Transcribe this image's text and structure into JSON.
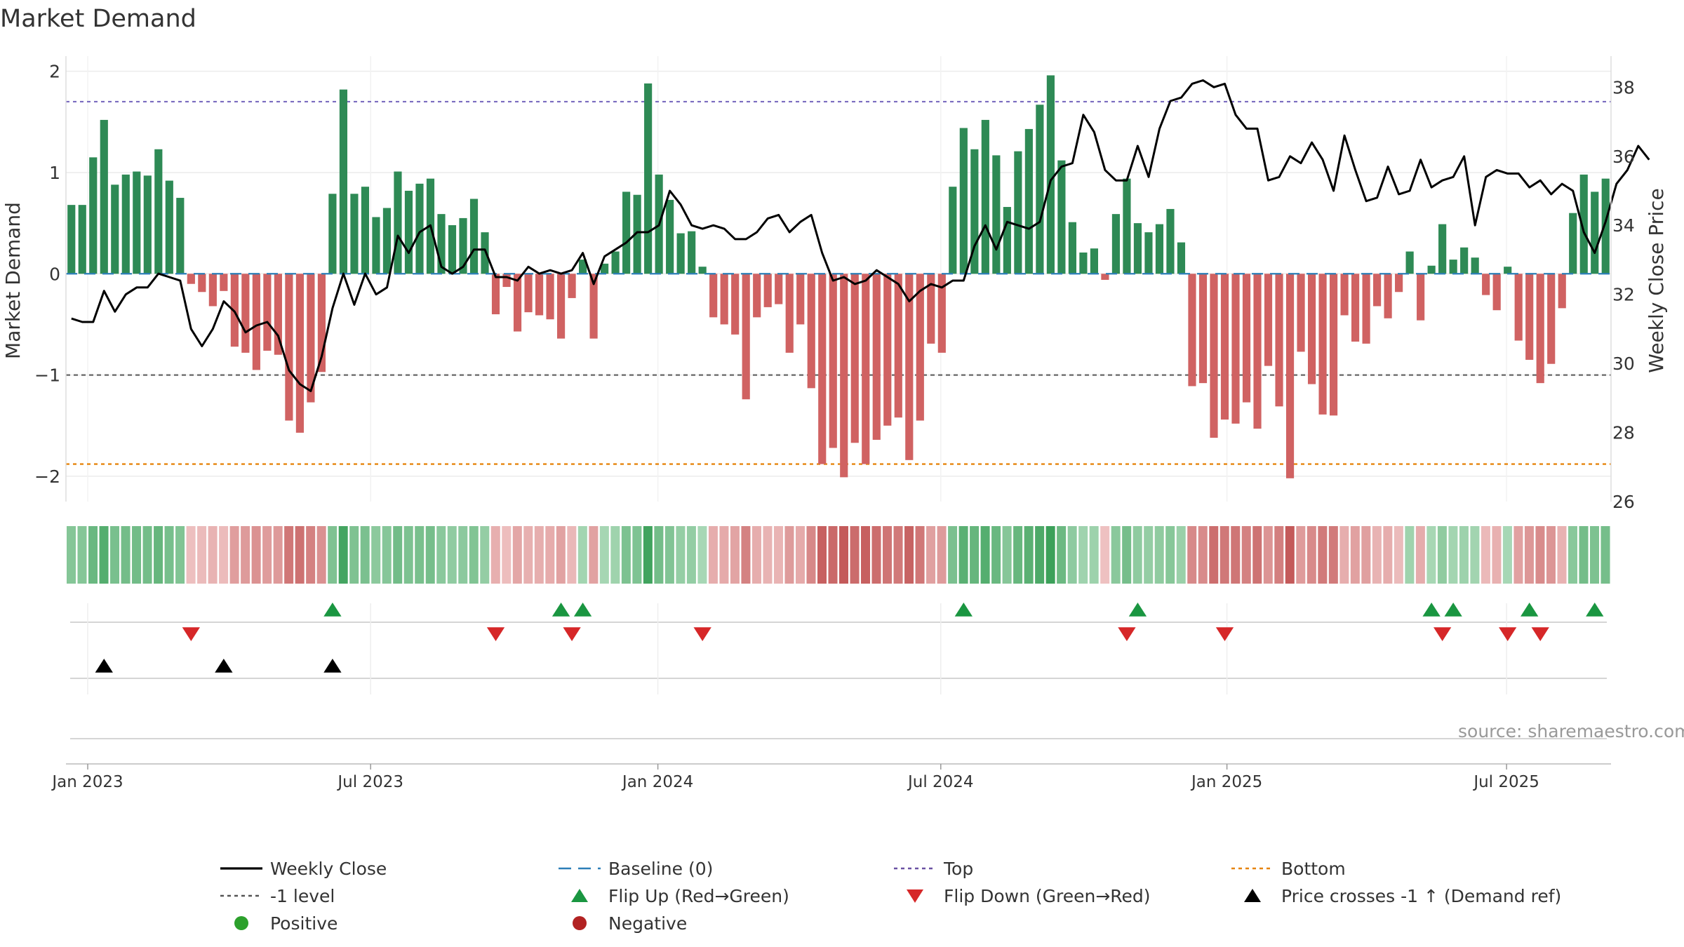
{
  "chart_data": {
    "type": "bar",
    "title": "Market Demand",
    "ylabel": "Market Demand",
    "y2label": "Weekly Close Price",
    "ylim": [
      -2.25,
      2.15
    ],
    "y2lim": [
      26,
      38.9
    ],
    "yticks": [
      {
        "v": 2,
        "t": "2"
      },
      {
        "v": 1,
        "t": "1"
      },
      {
        "v": 0,
        "t": "0"
      },
      {
        "v": -1,
        "t": "−1"
      },
      {
        "v": -2,
        "t": "−2"
      }
    ],
    "y2ticks": [
      {
        "v": 38,
        "t": "38"
      },
      {
        "v": 36,
        "t": "36"
      },
      {
        "v": 34,
        "t": "34"
      },
      {
        "v": 32,
        "t": "32"
      },
      {
        "v": 30,
        "t": "30"
      },
      {
        "v": 28,
        "t": "28"
      },
      {
        "v": 26,
        "t": "26"
      }
    ],
    "xticks": [
      {
        "w": 2,
        "t": "Jan 2023"
      },
      {
        "w": 28,
        "t": "Jul 2023"
      },
      {
        "w": 54.4,
        "t": "Jan 2024"
      },
      {
        "w": 80.4,
        "t": "Jul 2024"
      },
      {
        "w": 106.7,
        "t": "Jan 2025"
      },
      {
        "w": 132.4,
        "t": "Jul 2025"
      }
    ],
    "reference_lines": {
      "top": 1.7,
      "bottom": -1.88,
      "minus_one": -1,
      "baseline": 0
    },
    "demand": [
      0.68,
      0.68,
      1.15,
      1.52,
      0.88,
      0.98,
      1.01,
      0.97,
      1.23,
      0.92,
      0.75,
      -0.1,
      -0.18,
      -0.32,
      -0.17,
      -0.72,
      -0.78,
      -0.95,
      -0.76,
      -0.8,
      -1.45,
      -1.57,
      -1.27,
      -0.97,
      0.79,
      1.82,
      0.79,
      0.86,
      0.56,
      0.65,
      1.01,
      0.82,
      0.89,
      0.94,
      0.59,
      0.48,
      0.55,
      0.74,
      0.41,
      -0.4,
      -0.13,
      -0.57,
      -0.38,
      -0.41,
      -0.45,
      -0.64,
      -0.24,
      0.14,
      -0.64,
      0.1,
      0.22,
      0.81,
      0.78,
      1.88,
      0.98,
      0.73,
      0.4,
      0.42,
      0.07,
      -0.43,
      -0.5,
      -0.6,
      -1.24,
      -0.43,
      -0.33,
      -0.3,
      -0.78,
      -0.5,
      -1.13,
      -1.88,
      -1.72,
      -2.01,
      -1.67,
      -1.88,
      -1.64,
      -1.5,
      -1.42,
      -1.84,
      -1.45,
      -0.69,
      -0.78,
      0.86,
      1.44,
      1.23,
      1.52,
      1.17,
      0.66,
      1.21,
      1.43,
      1.67,
      1.96,
      1.12,
      0.51,
      0.21,
      0.25,
      -0.06,
      0.59,
      0.94,
      0.5,
      0.41,
      0.49,
      0.64,
      0.31,
      -1.11,
      -1.08,
      -1.62,
      -1.44,
      -1.48,
      -1.27,
      -1.53,
      -0.91,
      -1.31,
      -2.02,
      -0.77,
      -1.09,
      -1.39,
      -1.4,
      -0.41,
      -0.67,
      -0.69,
      -0.32,
      -0.44,
      -0.18,
      0.22,
      -0.46,
      0.08,
      0.49,
      0.14,
      0.26,
      0.16,
      -0.21,
      -0.36,
      0.07,
      -0.66,
      -0.85,
      -1.08,
      -0.89,
      -0.34,
      0.6,
      0.98,
      0.81,
      0.94
    ],
    "close": [
      31.3,
      31.2,
      31.2,
      32.1,
      31.5,
      32.0,
      32.2,
      32.2,
      32.6,
      32.5,
      32.4,
      31.0,
      30.5,
      31.0,
      31.8,
      31.5,
      30.9,
      31.1,
      31.2,
      30.8,
      29.8,
      29.4,
      29.2,
      30.2,
      31.6,
      32.6,
      31.7,
      32.6,
      32.0,
      32.2,
      33.7,
      33.2,
      33.8,
      34.0,
      32.8,
      32.6,
      32.8,
      33.3,
      33.3,
      32.5,
      32.5,
      32.4,
      32.8,
      32.6,
      32.7,
      32.6,
      32.7,
      33.2,
      32.3,
      33.1,
      33.3,
      33.5,
      33.8,
      33.8,
      34.0,
      35.0,
      34.6,
      34.0,
      33.9,
      34.0,
      33.9,
      33.6,
      33.6,
      33.8,
      34.2,
      34.3,
      33.8,
      34.1,
      34.3,
      33.2,
      32.4,
      32.5,
      32.3,
      32.4,
      32.7,
      32.5,
      32.3,
      31.8,
      32.1,
      32.3,
      32.2,
      32.4,
      32.4,
      33.4,
      34.0,
      33.3,
      34.1,
      34.0,
      33.9,
      34.1,
      35.3,
      35.7,
      35.8,
      37.2,
      36.7,
      35.6,
      35.3,
      35.3,
      36.3,
      35.4,
      36.8,
      37.6,
      37.7,
      38.1,
      38.2,
      38.0,
      38.1,
      37.2,
      36.8,
      36.8,
      35.3,
      35.4,
      36.0,
      35.8,
      36.4,
      35.9,
      35.0,
      36.6,
      35.6,
      34.7,
      34.8,
      35.7,
      34.9,
      35.0,
      35.9,
      35.1,
      35.3,
      35.4,
      36.0,
      34.0,
      35.4,
      35.6,
      35.5,
      35.5,
      35.1,
      35.3,
      34.9,
      35.2,
      35.0,
      33.8,
      33.2,
      34.1,
      35.2,
      35.6,
      36.3,
      35.9
    ],
    "markers": {
      "flip_up": [
        24,
        45,
        47,
        82,
        98,
        125,
        127,
        134,
        140
      ],
      "flip_down": [
        11,
        39,
        46,
        58,
        97,
        106,
        126,
        132,
        135
      ],
      "price_crosses": [
        3,
        14,
        24
      ]
    },
    "source": "source: sharemaestro.com",
    "legend": [
      {
        "label": "Weekly Close",
        "kind": "line",
        "color": "#000000"
      },
      {
        "label": "Baseline (0)",
        "kind": "dash",
        "color": "#2c7fb8"
      },
      {
        "label": "Top",
        "kind": "dot",
        "color": "#6a51a3"
      },
      {
        "label": "Bottom",
        "kind": "dot",
        "color": "#e6850e"
      },
      {
        "label": "-1 level",
        "kind": "dot",
        "color": "#555555"
      },
      {
        "label": "Flip Up (Red→Green)",
        "kind": "tri-up",
        "color": "#1a9641"
      },
      {
        "label": "Flip Down (Green→Red)",
        "kind": "tri-down",
        "color": "#d62728"
      },
      {
        "label": "Price crosses -1 ↑ (Demand ref)",
        "kind": "tri-up",
        "color": "#000000"
      },
      {
        "label": "Positive",
        "kind": "circle",
        "color": "#2ca02c"
      },
      {
        "label": "Negative",
        "kind": "circle",
        "color": "#b22222"
      }
    ],
    "colors": {
      "positive": "#2e8a55",
      "negative": "#d06262",
      "line": "#000000"
    }
  }
}
